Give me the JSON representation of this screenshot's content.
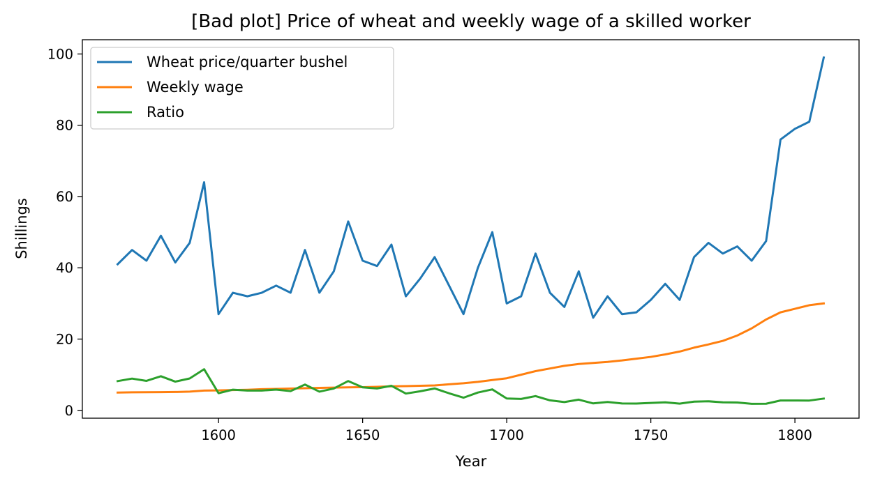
{
  "chart_data": {
    "type": "line",
    "title": "[Bad plot] Price of wheat and weekly wage of a skilled worker",
    "xlabel": "Year",
    "ylabel": "Shillings",
    "xlim": [
      1552.75,
      1822.25
    ],
    "ylim": [
      -2.2,
      104.0
    ],
    "xticks": [
      1600,
      1650,
      1700,
      1750,
      1800
    ],
    "yticks": [
      0,
      20,
      40,
      60,
      80,
      100
    ],
    "grid": false,
    "legend_position": "top-left",
    "x": [
      1565,
      1570,
      1575,
      1580,
      1585,
      1590,
      1595,
      1600,
      1605,
      1610,
      1615,
      1620,
      1625,
      1630,
      1635,
      1640,
      1645,
      1650,
      1655,
      1660,
      1665,
      1670,
      1675,
      1680,
      1685,
      1690,
      1695,
      1700,
      1705,
      1710,
      1715,
      1720,
      1725,
      1730,
      1735,
      1740,
      1745,
      1750,
      1755,
      1760,
      1765,
      1770,
      1775,
      1780,
      1785,
      1790,
      1795,
      1800,
      1805,
      1810
    ],
    "series": [
      {
        "name": "Wheat price/quarter bushel",
        "color": "#1f77b4",
        "values": [
          41,
          45,
          42,
          49,
          41.5,
          47,
          64,
          27,
          33,
          32,
          33,
          35,
          33,
          45,
          33,
          39,
          53,
          42,
          40.5,
          46.5,
          32,
          37,
          43,
          35,
          27,
          40,
          50,
          30,
          32,
          44,
          33,
          29,
          39,
          26,
          32,
          27,
          27.5,
          31,
          35.5,
          31,
          43,
          47,
          44,
          46,
          42,
          47.5,
          76,
          79,
          81,
          99
        ]
      },
      {
        "name": "Weekly wage",
        "color": "#ff7f0e",
        "values": [
          5,
          5.05,
          5.08,
          5.12,
          5.15,
          5.25,
          5.54,
          5.61,
          5.69,
          5.78,
          5.94,
          6.01,
          6.12,
          6.22,
          6.3,
          6.37,
          6.45,
          6.5,
          6.6,
          6.75,
          6.8,
          6.9,
          7,
          7.3,
          7.6,
          8,
          8.5,
          9,
          10,
          11,
          11.75,
          12.5,
          13,
          13.3,
          13.6,
          14,
          14.5,
          15,
          15.7,
          16.5,
          17.6,
          18.5,
          19.5,
          21,
          23,
          25.5,
          27.5,
          28.5,
          29.5,
          30
        ]
      },
      {
        "name": "Ratio",
        "color": "#2ca02c",
        "values": [
          8.2,
          8.91,
          8.27,
          9.57,
          8.06,
          8.95,
          11.55,
          4.81,
          5.8,
          5.54,
          5.56,
          5.82,
          5.39,
          7.23,
          5.24,
          6.12,
          8.22,
          6.46,
          6.14,
          6.89,
          4.71,
          5.36,
          6.14,
          4.79,
          3.55,
          5,
          5.88,
          3.33,
          3.2,
          4,
          2.81,
          2.32,
          3,
          1.95,
          2.35,
          1.93,
          1.9,
          2.07,
          2.26,
          1.88,
          2.44,
          2.54,
          2.26,
          2.19,
          1.83,
          1.86,
          2.76,
          2.77,
          2.75,
          3.3
        ]
      }
    ]
  }
}
